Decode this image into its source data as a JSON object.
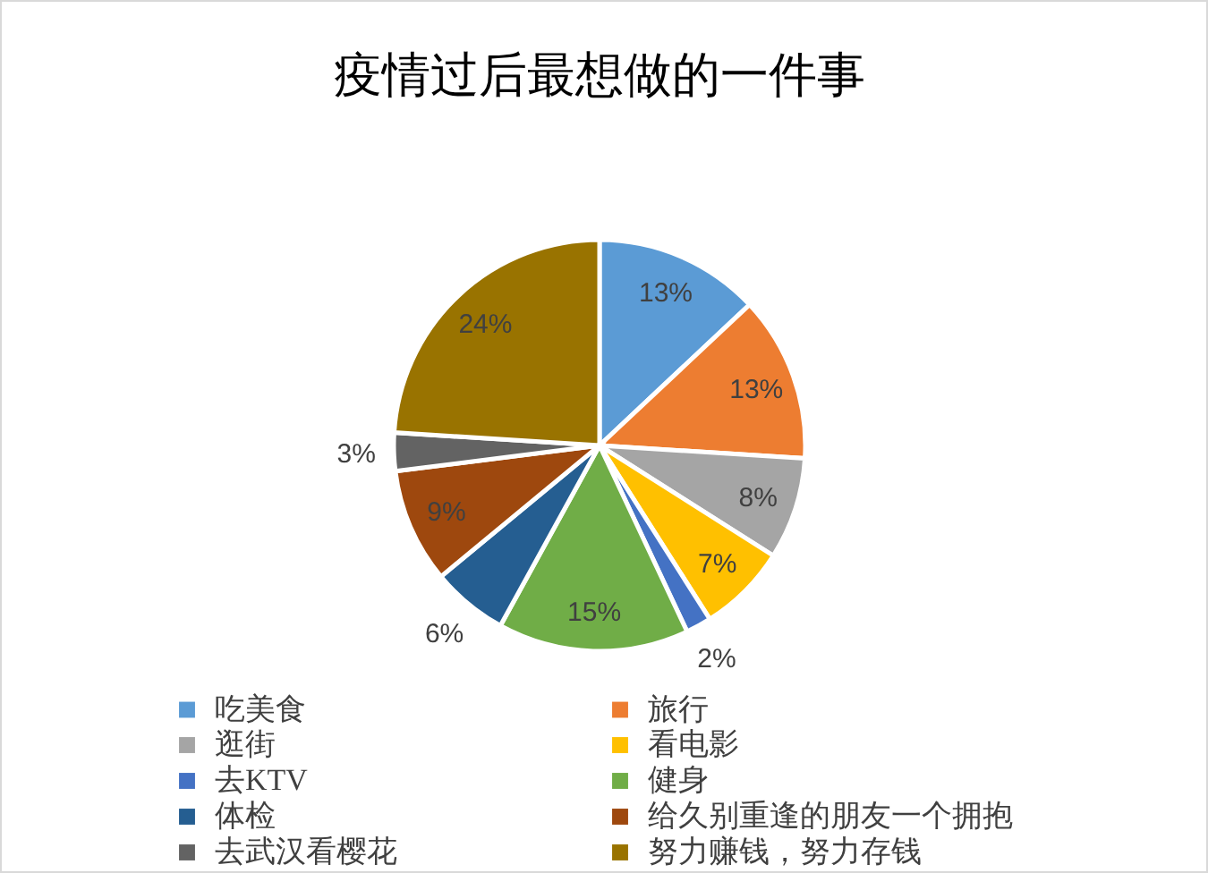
{
  "chart_data": {
    "type": "pie",
    "title": "疫情过后最想做的一件事",
    "categories": [
      "吃美食",
      "旅行",
      "逛街",
      "看电影",
      "去KTV",
      "健身",
      "体检",
      "给久别重逢的朋友一个拥抱",
      "去武汉看樱花",
      "努力赚钱，努力存钱"
    ],
    "values": [
      13,
      13,
      8,
      7,
      2,
      15,
      6,
      9,
      3,
      24
    ],
    "value_labels": [
      "13%",
      "13%",
      "8%",
      "7%",
      "2%",
      "15%",
      "6%",
      "9%",
      "3%",
      "24%"
    ],
    "colors": [
      "#5b9bd5",
      "#ed7d31",
      "#a5a5a5",
      "#ffc000",
      "#4472c4",
      "#70ad47",
      "#255e91",
      "#9e480e",
      "#636363",
      "#997300"
    ],
    "legend": "bottom"
  }
}
